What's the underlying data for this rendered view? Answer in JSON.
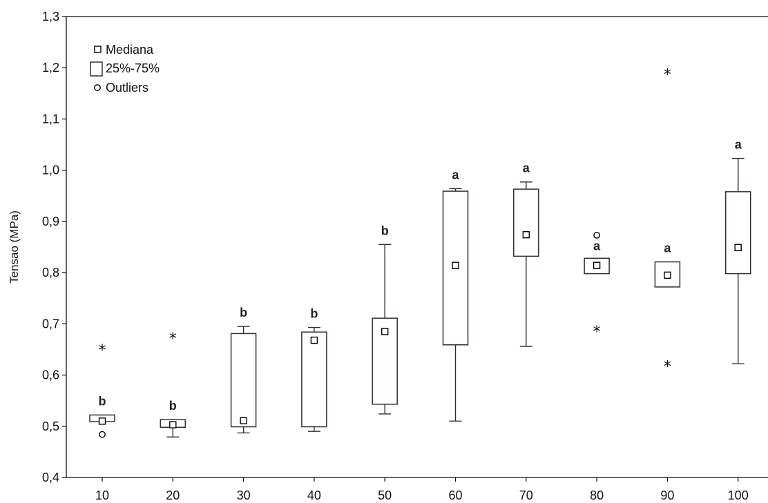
{
  "chart_data": {
    "type": "box",
    "ylabel": "Tensao (MPa)",
    "xlabel": "",
    "ylim": [
      0.4,
      1.3
    ],
    "yticks": [
      "0,4",
      "0,5",
      "0,6",
      "0,7",
      "0,8",
      "0,9",
      "1,0",
      "1,1",
      "1,2",
      "1,3"
    ],
    "categories": [
      "10",
      "20",
      "30",
      "40",
      "50",
      "60",
      "70",
      "80",
      "90",
      "100"
    ],
    "legend": {
      "position": "top-left",
      "entries": [
        "Mediana",
        "25%-75%",
        "Outliers"
      ]
    },
    "boxes": [
      {
        "x": "10",
        "median": 0.51,
        "q1": 0.509,
        "q3": 0.522,
        "whisker_low": 0.509,
        "whisker_high": 0.522,
        "outliers": [
          0.484
        ],
        "extremes": [
          0.652
        ],
        "letter": "b"
      },
      {
        "x": "20",
        "median": 0.503,
        "q1": 0.498,
        "q3": 0.513,
        "whisker_low": 0.479,
        "whisker_high": 0.513,
        "outliers": [],
        "extremes": [
          0.675
        ],
        "letter": "b"
      },
      {
        "x": "30",
        "median": 0.511,
        "q1": 0.499,
        "q3": 0.681,
        "whisker_low": 0.487,
        "whisker_high": 0.695,
        "outliers": [],
        "extremes": [],
        "letter": "b"
      },
      {
        "x": "40",
        "median": 0.668,
        "q1": 0.499,
        "q3": 0.684,
        "whisker_low": 0.49,
        "whisker_high": 0.693,
        "outliers": [],
        "extremes": [],
        "letter": "b"
      },
      {
        "x": "50",
        "median": 0.685,
        "q1": 0.543,
        "q3": 0.711,
        "whisker_low": 0.524,
        "whisker_high": 0.855,
        "outliers": [],
        "extremes": [],
        "letter": "b"
      },
      {
        "x": "60",
        "median": 0.814,
        "q1": 0.659,
        "q3": 0.959,
        "whisker_low": 0.51,
        "whisker_high": 0.964,
        "outliers": [],
        "extremes": [],
        "letter": "a"
      },
      {
        "x": "70",
        "median": 0.874,
        "q1": 0.832,
        "q3": 0.963,
        "whisker_low": 0.656,
        "whisker_high": 0.977,
        "outliers": [],
        "extremes": [],
        "letter": "a"
      },
      {
        "x": "80",
        "median": 0.814,
        "q1": 0.798,
        "q3": 0.828,
        "whisker_low": 0.798,
        "whisker_high": 0.828,
        "outliers": [
          0.873
        ],
        "extremes": [
          0.688
        ],
        "letter": "a"
      },
      {
        "x": "90",
        "median": 0.795,
        "q1": 0.772,
        "q3": 0.821,
        "whisker_low": 0.772,
        "whisker_high": 0.821,
        "outliers": [],
        "extremes": [
          1.19,
          0.62
        ],
        "letter": "a"
      },
      {
        "x": "100",
        "median": 0.849,
        "q1": 0.798,
        "q3": 0.958,
        "whisker_low": 0.622,
        "whisker_high": 1.023,
        "outliers": [],
        "extremes": [],
        "letter": "a"
      }
    ]
  }
}
